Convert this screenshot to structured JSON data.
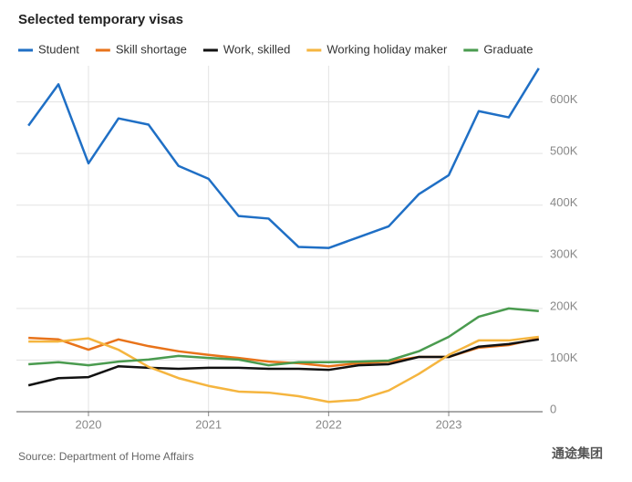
{
  "chart_data": {
    "type": "line",
    "title": "Selected temporary visas",
    "source": "Source: Department of Home Affairs",
    "watermark": "通途集团",
    "x": [
      2019.5,
      2019.75,
      2020,
      2020.25,
      2020.5,
      2020.75,
      2021,
      2021.25,
      2021.5,
      2021.75,
      2022,
      2022.25,
      2022.5,
      2022.75,
      2023,
      2023.25,
      2023.5,
      2023.75
    ],
    "series": [
      {
        "name": "Student",
        "color": "#1f6fc5",
        "values": [
          554000,
          634000,
          481000,
          568000,
          556000,
          476000,
          451000,
          379000,
          374000,
          319000,
          317000,
          338000,
          359000,
          421000,
          458000,
          582000,
          570000,
          665000
        ]
      },
      {
        "name": "Skill shortage",
        "color": "#e8731a",
        "values": [
          143000,
          140000,
          120000,
          140000,
          127000,
          117000,
          110000,
          104000,
          97000,
          94000,
          88000,
          94000,
          97000,
          106000,
          106000,
          124000,
          129000,
          142000
        ]
      },
      {
        "name": "Work, skilled",
        "color": "#111111",
        "values": [
          51000,
          65000,
          67000,
          88000,
          85000,
          83000,
          85000,
          85000,
          83000,
          83000,
          81000,
          90000,
          92000,
          106000,
          106000,
          126000,
          131000,
          140000
        ]
      },
      {
        "name": "Working holiday maker",
        "color": "#f5b53f",
        "values": [
          136000,
          136000,
          142000,
          120000,
          87000,
          65000,
          50000,
          39000,
          37000,
          30000,
          19000,
          23000,
          41000,
          73000,
          110000,
          138000,
          138000,
          145000
        ]
      },
      {
        "name": "Graduate",
        "color": "#4a9b4f",
        "values": [
          92000,
          96000,
          90000,
          97000,
          101000,
          108000,
          104000,
          101000,
          90000,
          96000,
          96000,
          97000,
          99000,
          117000,
          145000,
          184000,
          200000,
          195000
        ]
      }
    ],
    "xlim": [
      2019.4,
      2023.82
    ],
    "xticks": [
      2020,
      2021,
      2022,
      2023
    ],
    "ylim": [
      0,
      670000
    ],
    "yticks": [
      0,
      {
        "value": 100000,
        "label": "100K"
      },
      {
        "value": 200000,
        "label": "200K"
      },
      {
        "value": 300000,
        "label": "300K"
      },
      {
        "value": 400000,
        "label": "400K"
      },
      {
        "value": 500000,
        "label": "500K"
      },
      {
        "value": 600000,
        "label": "600K"
      }
    ],
    "grid": true
  }
}
